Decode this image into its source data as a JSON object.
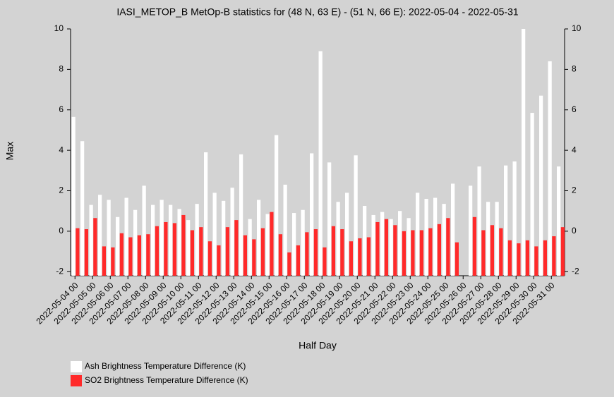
{
  "chart_data": {
    "type": "bar",
    "title": "IASI_METOP_B MetOp-B statistics for (48 N, 63 E) - (51 N, 66 E): 2022-05-04 - 2022-05-31",
    "xlabel": "Half Day",
    "ylabel": "Max",
    "categories": [
      "2022-05-04 00",
      null,
      "2022-05-05 00",
      null,
      "2022-05-06 00",
      null,
      "2022-05-07 00",
      null,
      "2022-05-08 00",
      null,
      "2022-05-09 00",
      null,
      "2022-05-10 00",
      null,
      "2022-05-11 00",
      null,
      "2022-05-12 00",
      null,
      "2022-05-13 00",
      null,
      "2022-05-14 00",
      null,
      "2022-05-15 00",
      null,
      "2022-05-16 00",
      null,
      "2022-05-17 00",
      null,
      "2022-05-18 00",
      null,
      "2022-05-19 00",
      null,
      "2022-05-20 00",
      null,
      "2022-05-21 00",
      null,
      "2022-05-22 00",
      null,
      "2022-05-23 00",
      null,
      "2022-05-24 00",
      null,
      "2022-05-25 00",
      null,
      "2022-05-26 00",
      null,
      "2022-05-27 00",
      null,
      "2022-05-28 00",
      null,
      "2022-05-29 00",
      null,
      "2022-05-30 00",
      null,
      "2022-05-31 00",
      null
    ],
    "series": [
      {
        "name": "Ash Brightness Temperature Difference (K)",
        "color": "#ffffff",
        "values": [
          5.65,
          4.45,
          1.3,
          1.8,
          1.55,
          0.7,
          1.65,
          1.05,
          2.25,
          1.3,
          1.55,
          1.3,
          1.1,
          0.55,
          1.35,
          3.9,
          1.9,
          1.5,
          2.15,
          3.8,
          0.6,
          1.55,
          0.85,
          4.75,
          2.3,
          0.9,
          1.05,
          3.85,
          8.9,
          3.4,
          1.45,
          1.9,
          3.75,
          1.25,
          0.8,
          0.95,
          0.6,
          1.0,
          0.65,
          1.9,
          1.6,
          1.65,
          1.35,
          2.35,
          null,
          2.25,
          3.2,
          1.45,
          1.45,
          3.25,
          3.45,
          10.0,
          5.85,
          6.7,
          8.4,
          3.2
        ]
      },
      {
        "name": "SO2 Brightness Temperature Difference (K)",
        "color": "#ff2a2a",
        "values": [
          0.15,
          0.1,
          0.65,
          -0.75,
          -0.8,
          -0.1,
          -0.3,
          -0.2,
          -0.15,
          0.25,
          0.45,
          0.4,
          0.8,
          0.05,
          0.2,
          -0.5,
          -0.7,
          0.2,
          0.55,
          -0.2,
          -0.4,
          0.15,
          0.95,
          -0.15,
          -1.05,
          -0.7,
          -0.05,
          0.1,
          -0.8,
          0.25,
          0.1,
          -0.5,
          -0.35,
          -0.3,
          0.45,
          0.6,
          0.3,
          0.0,
          0.05,
          0.05,
          0.15,
          0.35,
          0.65,
          -0.55,
          null,
          0.7,
          0.05,
          0.3,
          0.15,
          -0.45,
          -0.6,
          -0.45,
          -0.75,
          -0.45,
          -0.25,
          0.2
        ]
      }
    ],
    "ylim": [
      -2.2,
      10
    ],
    "yticks": [
      -2,
      0,
      2,
      4,
      6,
      8,
      10
    ]
  }
}
